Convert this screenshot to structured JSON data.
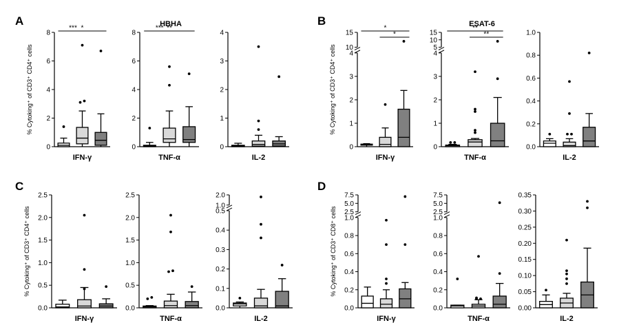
{
  "figure": {
    "colors": {
      "white_box": "#ffffff",
      "light_box": "#d9d9d9",
      "dark_box": "#808080",
      "ink": "#000000"
    }
  },
  "chart_data": [
    {
      "type": "boxplot",
      "panel": "A",
      "title": "HBHA",
      "ylabel": "% Cytoking⁺ of CD3⁺ CD4⁺ cells",
      "xlabel": "IFN-γ",
      "ylim": [
        0,
        8
      ],
      "yticks": [
        0,
        2,
        4,
        6,
        8
      ],
      "boxes": [
        {
          "q1": 0,
          "med": 0.1,
          "q3": 0.25,
          "wlo": 0,
          "whi": 0.6,
          "outliers": [
            1.4
          ]
        },
        {
          "q1": 0.2,
          "med": 0.6,
          "q3": 1.35,
          "wlo": 0,
          "whi": 2.5,
          "outliers": [
            3.1,
            3.2,
            7.1
          ]
        },
        {
          "q1": 0.1,
          "med": 0.45,
          "q3": 1.0,
          "wlo": 0,
          "whi": 2.3,
          "outliers": [
            6.7
          ]
        }
      ],
      "sig": [
        {
          "a": 0,
          "b": 1,
          "label": "***",
          "level": 0
        },
        {
          "a": 0,
          "b": 2,
          "label": "*",
          "level": 0
        }
      ]
    },
    {
      "type": "boxplot",
      "panel": "A",
      "title": "",
      "ylabel": "",
      "xlabel": "TNF-α",
      "ylim": [
        0,
        8
      ],
      "yticks": [
        0,
        2,
        4,
        6,
        8
      ],
      "boxes": [
        {
          "q1": 0,
          "med": 0.05,
          "q3": 0.1,
          "wlo": 0,
          "whi": 0.3,
          "outliers": [
            1.3
          ]
        },
        {
          "q1": 0.3,
          "med": 0.55,
          "q3": 1.3,
          "wlo": 0,
          "whi": 2.5,
          "outliers": [
            4.3,
            5.6
          ]
        },
        {
          "q1": 0.3,
          "med": 0.5,
          "q3": 1.4,
          "wlo": 0,
          "whi": 2.8,
          "outliers": [
            5.1
          ]
        }
      ],
      "sig": [
        {
          "a": 0,
          "b": 1,
          "label": "***",
          "level": 0
        },
        {
          "a": 0,
          "b": 2,
          "label": "**",
          "level": 0
        }
      ]
    },
    {
      "type": "boxplot",
      "panel": "A",
      "title": "",
      "ylabel": "",
      "xlabel": "IL-2",
      "ylim": [
        0,
        4
      ],
      "yticks": [
        0,
        1,
        2,
        3,
        4
      ],
      "boxes": [
        {
          "q1": 0,
          "med": 0.02,
          "q3": 0.05,
          "wlo": 0,
          "whi": 0.12,
          "outliers": []
        },
        {
          "q1": 0.02,
          "med": 0.08,
          "q3": 0.2,
          "wlo": 0,
          "whi": 0.4,
          "outliers": [
            0.6,
            0.9,
            3.5
          ]
        },
        {
          "q1": 0.02,
          "med": 0.1,
          "q3": 0.2,
          "wlo": 0,
          "whi": 0.35,
          "outliers": [
            2.45
          ]
        }
      ],
      "sig": []
    },
    {
      "type": "boxplot",
      "panel": "B",
      "title": "ESAT-6",
      "ylabel": "% Cytoking⁺ of CD3⁺ CD4⁺ cells",
      "xlabel": "IFN-γ",
      "ylim": [
        0,
        15
      ],
      "yticks": [
        0,
        1,
        2,
        3,
        4,
        10,
        15
      ],
      "axis_break": {
        "at": 4,
        "resume": 10,
        "frac": 0.82
      },
      "boxes": [
        {
          "q1": 0.07,
          "med": 0.09,
          "q3": 0.11,
          "wlo": 0,
          "whi": 0.13,
          "outliers": []
        },
        {
          "q1": 0,
          "med": 0.1,
          "q3": 0.4,
          "wlo": 0,
          "whi": 0.8,
          "outliers": [
            1.8
          ]
        },
        {
          "q1": 0,
          "med": 0.4,
          "q3": 1.6,
          "wlo": 0,
          "whi": 2.4,
          "outliers": [
            12
          ]
        }
      ],
      "sig": [
        {
          "a": 0,
          "b": 2,
          "label": "*",
          "level": 0
        },
        {
          "a": 1,
          "b": 2,
          "label": "*",
          "level": 1
        }
      ]
    },
    {
      "type": "boxplot",
      "panel": "B",
      "title": "",
      "ylabel": "",
      "xlabel": "TNF-α",
      "ylim": [
        0,
        15
      ],
      "yticks": [
        0,
        1,
        2,
        3,
        4,
        5,
        10,
        15
      ],
      "axis_break": {
        "at": 4,
        "resume": 5,
        "frac": 0.82
      },
      "boxes": [
        {
          "q1": 0,
          "med": 0.04,
          "q3": 0.07,
          "wlo": 0,
          "whi": 0.1,
          "outliers": [
            0.18,
            0.18
          ]
        },
        {
          "q1": 0,
          "med": 0.2,
          "q3": 0.3,
          "wlo": 0,
          "whi": 0.35,
          "outliers": [
            0.6,
            0.7,
            1.5,
            1.6,
            3.2
          ]
        },
        {
          "q1": 0,
          "med": 0.25,
          "q3": 1.0,
          "wlo": 0,
          "whi": 2.1,
          "outliers": [
            2.9,
            9
          ]
        }
      ],
      "sig": [
        {
          "a": 0,
          "b": 2,
          "label": "**",
          "level": 0
        },
        {
          "a": 1,
          "b": 2,
          "label": "**",
          "level": 1
        }
      ]
    },
    {
      "type": "boxplot",
      "panel": "B",
      "title": "",
      "ylabel": "",
      "xlabel": "IL-2",
      "ylim": [
        0,
        1.0
      ],
      "yticks": [
        0,
        0.2,
        0.4,
        0.6,
        0.8,
        1.0
      ],
      "boxes": [
        {
          "q1": 0,
          "med": 0.03,
          "q3": 0.05,
          "wlo": 0,
          "whi": 0.07,
          "outliers": [
            0.11
          ]
        },
        {
          "q1": 0,
          "med": 0.01,
          "q3": 0.04,
          "wlo": 0,
          "whi": 0.07,
          "outliers": [
            0.11,
            0.11,
            0.29,
            0.57
          ]
        },
        {
          "q1": 0,
          "med": 0.05,
          "q3": 0.17,
          "wlo": 0,
          "whi": 0.29,
          "outliers": [
            0.82
          ]
        }
      ],
      "sig": []
    },
    {
      "type": "boxplot",
      "panel": "C",
      "title": "",
      "ylabel": "% Cytoking⁺ of CD3⁺ CD4⁺ cells",
      "xlabel": "IFN-γ",
      "ylim": [
        0,
        2.5
      ],
      "yticks": [
        0,
        0.5,
        1.0,
        1.5,
        2.0,
        2.5
      ],
      "boxes": [
        {
          "q1": 0,
          "med": 0.02,
          "q3": 0.08,
          "wlo": 0,
          "whi": 0.17,
          "outliers": []
        },
        {
          "q1": 0,
          "med": 0.04,
          "q3": 0.18,
          "wlo": 0,
          "whi": 0.45,
          "outliers": [
            0.42,
            0.85,
            2.05
          ]
        },
        {
          "q1": 0,
          "med": 0.04,
          "q3": 0.09,
          "wlo": 0,
          "whi": 0.2,
          "outliers": [
            0.47
          ]
        }
      ],
      "sig": []
    },
    {
      "type": "boxplot",
      "panel": "C",
      "title": "",
      "ylabel": "",
      "xlabel": "TNF-α",
      "ylim": [
        0,
        2.5
      ],
      "yticks": [
        0,
        0.5,
        1.0,
        1.5,
        2.0,
        2.5
      ],
      "boxes": [
        {
          "q1": 0,
          "med": 0.02,
          "q3": 0.04,
          "wlo": 0,
          "whi": 0.05,
          "outliers": [
            0.2,
            0.23
          ]
        },
        {
          "q1": 0,
          "med": 0.05,
          "q3": 0.15,
          "wlo": 0,
          "whi": 0.3,
          "outliers": [
            0.8,
            0.82,
            1.68,
            2.05
          ]
        },
        {
          "q1": 0,
          "med": 0.05,
          "q3": 0.14,
          "wlo": 0,
          "whi": 0.35,
          "outliers": [
            0.47
          ]
        }
      ],
      "sig": []
    },
    {
      "type": "boxplot",
      "panel": "C",
      "title": "",
      "ylabel": "",
      "xlabel": "IL-2",
      "ylim": [
        0,
        2
      ],
      "yticks": [
        0,
        0.1,
        0.2,
        0.3,
        0.4,
        0.5,
        1,
        2
      ],
      "axis_break": {
        "at": 0.5,
        "resume": 1,
        "frac": 0.86
      },
      "boxes": [
        {
          "q1": 0.01,
          "med": 0.02,
          "q3": 0.025,
          "wlo": 0,
          "whi": 0.03,
          "outliers": [
            0.05
          ]
        },
        {
          "q1": 0,
          "med": 0.01,
          "q3": 0.05,
          "wlo": 0,
          "whi": 0.095,
          "outliers": [
            0.36,
            0.43,
            1.8
          ]
        },
        {
          "q1": 0,
          "med": 0.01,
          "q3": 0.085,
          "wlo": 0,
          "whi": 0.15,
          "outliers": [
            0.22
          ]
        }
      ],
      "sig": []
    },
    {
      "type": "boxplot",
      "panel": "D",
      "title": "",
      "ylabel": "% Cytoking⁺ of CD3⁺ CD8⁺ cells",
      "xlabel": "IFN-γ",
      "ylim": [
        0,
        7.5
      ],
      "yticks": [
        0,
        0.2,
        0.4,
        0.6,
        0.8,
        1.0,
        2.5,
        5.0,
        7.5
      ],
      "axis_break": {
        "at": 1.0,
        "resume": 2.5,
        "frac": 0.8
      },
      "boxes": [
        {
          "q1": 0,
          "med": 0.05,
          "q3": 0.13,
          "wlo": 0,
          "whi": 0.23,
          "outliers": []
        },
        {
          "q1": 0,
          "med": 0.04,
          "q3": 0.1,
          "wlo": 0,
          "whi": 0.2,
          "outliers": [
            0.27,
            0.32,
            0.7,
            0.97
          ]
        },
        {
          "q1": 0,
          "med": 0.1,
          "q3": 0.21,
          "wlo": 0,
          "whi": 0.28,
          "outliers": [
            0.7,
            7.0
          ]
        }
      ],
      "sig": []
    },
    {
      "type": "boxplot",
      "panel": "D",
      "title": "",
      "ylabel": "",
      "xlabel": "TNF-α",
      "ylim": [
        0,
        7.5
      ],
      "yticks": [
        0,
        0.2,
        0.4,
        0.6,
        0.8,
        1.0,
        2.5,
        5.0,
        7.5
      ],
      "axis_break": {
        "at": 1.0,
        "resume": 2.5,
        "frac": 0.8
      },
      "boxes": [
        {
          "q1": 0,
          "med": 0.02,
          "q3": 0.03,
          "wlo": 0,
          "whi": 0.03,
          "outliers": [
            0.32
          ]
        },
        {
          "q1": 0,
          "med": 0.02,
          "q3": 0.04,
          "wlo": 0,
          "whi": 0.09,
          "outliers": [
            0.1,
            0.1,
            0.11,
            0.57
          ]
        },
        {
          "q1": 0,
          "med": 0.04,
          "q3": 0.13,
          "wlo": 0,
          "whi": 0.27,
          "outliers": [
            0.38,
            5.2
          ]
        }
      ],
      "sig": []
    },
    {
      "type": "boxplot",
      "panel": "D",
      "title": "",
      "ylabel": "",
      "xlabel": "IL-2",
      "ylim": [
        0,
        0.35
      ],
      "yticks": [
        0,
        0.05,
        0.1,
        0.15,
        0.2,
        0.25,
        0.3,
        0.35
      ],
      "boxes": [
        {
          "q1": 0,
          "med": 0.01,
          "q3": 0.02,
          "wlo": 0,
          "whi": 0.04,
          "outliers": [
            0.055
          ]
        },
        {
          "q1": 0,
          "med": 0.015,
          "q3": 0.03,
          "wlo": 0,
          "whi": 0.045,
          "outliers": [
            0.075,
            0.09,
            0.105,
            0.115,
            0.21
          ]
        },
        {
          "q1": 0,
          "med": 0.04,
          "q3": 0.08,
          "wlo": 0,
          "whi": 0.185,
          "outliers": [
            0.31,
            0.33
          ]
        }
      ],
      "sig": []
    }
  ]
}
